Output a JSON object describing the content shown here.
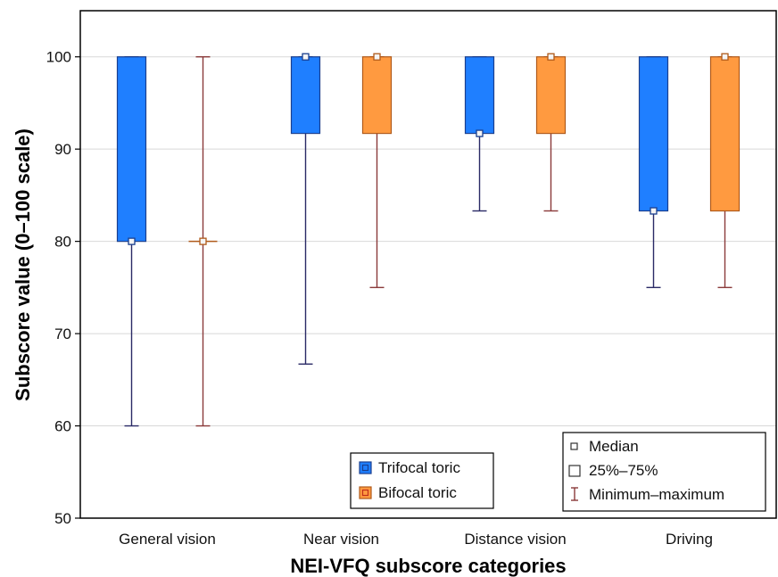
{
  "chart_data": {
    "type": "box",
    "title": "",
    "xlabel": "NEI-VFQ subscore categories",
    "ylabel": "Subscore value (0–100 scale)",
    "ylim": [
      50,
      105
    ],
    "yticks": [
      50,
      60,
      70,
      80,
      90,
      100
    ],
    "grid": true,
    "categories": [
      "General vision",
      "Near vision",
      "Distance vision",
      "Driving"
    ],
    "series": [
      {
        "name": "Trifocal toric",
        "color": "#1f7fff",
        "edge": "#1a3f8f",
        "whisker": "#2a2a66",
        "data": [
          {
            "min": 60,
            "q1": 80,
            "median": 80,
            "q3": 100,
            "max": 100
          },
          {
            "min": 66.7,
            "q1": 91.7,
            "median": 100,
            "q3": 100,
            "max": 100
          },
          {
            "min": 83.3,
            "q1": 91.7,
            "median": 91.7,
            "q3": 100,
            "max": 100
          },
          {
            "min": 75,
            "q1": 83.3,
            "median": 83.3,
            "q3": 100,
            "max": 100
          }
        ]
      },
      {
        "name": "Bifocal toric",
        "color": "#ff9a40",
        "edge": "#b05a1a",
        "whisker": "#8a3a3a",
        "data": [
          {
            "min": 60,
            "q1": 80,
            "median": 80,
            "q3": 80,
            "max": 100
          },
          {
            "min": 75,
            "q1": 91.7,
            "median": 100,
            "q3": 100,
            "max": 100
          },
          {
            "min": 83.3,
            "q1": 91.7,
            "median": 100,
            "q3": 100,
            "max": 100
          },
          {
            "min": 75,
            "q1": 83.3,
            "median": 100,
            "q3": 100,
            "max": 100
          }
        ]
      }
    ],
    "legend_series_placement": "bottom-center",
    "legend_key": {
      "placement": "bottom-right",
      "items": [
        "Median",
        "25%–75%",
        "Minimum–maximum"
      ]
    }
  }
}
